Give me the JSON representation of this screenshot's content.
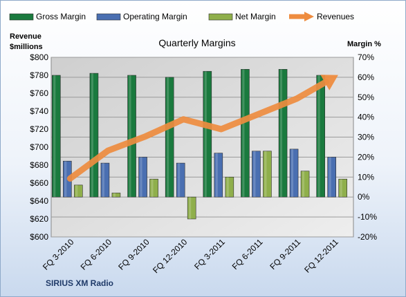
{
  "chart_data": {
    "type": "bar",
    "title": "Quarterly Margins",
    "left_axis_label": [
      "Revenue",
      "$millions"
    ],
    "right_axis_label": "Margin %",
    "footer": "SIRIUS XM Radio",
    "categories": [
      "FQ 3-2010",
      "FQ 6-2010",
      "FQ 9-2010",
      "FQ 12-2010",
      "FQ 3-2011",
      "FQ 6-2011",
      "FQ 9-2011",
      "FQ 12-2011"
    ],
    "left_axis": {
      "min": 600,
      "max": 800,
      "step": 20,
      "tick_prefix": "$"
    },
    "right_axis": {
      "min": -20,
      "max": 70,
      "step": 10,
      "tick_suffix": "%"
    },
    "series": [
      {
        "name": "Gross Margin",
        "type": "bar",
        "axis": "right",
        "color": "#1a7a3e",
        "values": [
          61,
          62,
          61,
          60,
          63,
          64,
          64,
          61
        ]
      },
      {
        "name": "Operating Margin",
        "type": "bar",
        "axis": "right",
        "color": "#4a6fb1",
        "values": [
          18,
          17,
          20,
          17,
          22,
          23,
          24,
          20
        ]
      },
      {
        "name": "Net Margin",
        "type": "bar",
        "axis": "right",
        "color": "#8faf4b",
        "values": [
          6,
          2,
          9,
          -11,
          10,
          23,
          13,
          9
        ]
      },
      {
        "name": "Revenues",
        "type": "line",
        "axis": "left",
        "color": "#ee8c3f",
        "values": [
          665,
          696,
          712,
          731,
          720,
          737,
          754,
          778
        ]
      }
    ],
    "grid": true,
    "legend_position": "top"
  }
}
